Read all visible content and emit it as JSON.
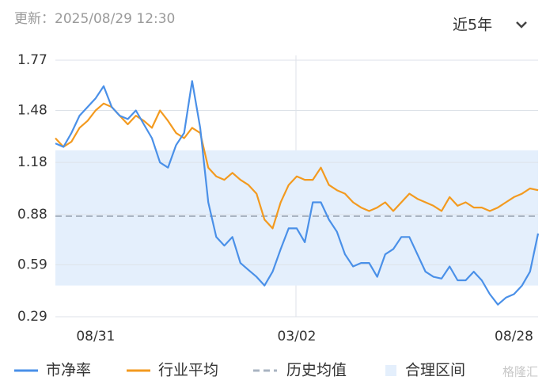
{
  "header": {
    "updated": "更新：2025/08/29 12:30",
    "range_selector": "近5年"
  },
  "watermark": "格隆汇",
  "chart_data": {
    "type": "line",
    "categories": [
      null,
      null,
      null,
      null,
      null,
      "08/31",
      null,
      null,
      null,
      null,
      null,
      null,
      null,
      null,
      null,
      null,
      null,
      null,
      null,
      null,
      null,
      null,
      null,
      null,
      null,
      null,
      null,
      null,
      null,
      null,
      "03/02",
      null,
      null,
      null,
      null,
      null,
      null,
      null,
      null,
      null,
      null,
      null,
      null,
      null,
      null,
      null,
      null,
      null,
      null,
      null,
      null,
      null,
      null,
      null,
      null,
      null,
      null,
      "08/28",
      null,
      null,
      null
    ],
    "series": [
      {
        "name": "市净率",
        "color": "#4a90e8",
        "values": [
          1.29,
          1.27,
          1.35,
          1.45,
          1.5,
          1.55,
          1.62,
          1.5,
          1.45,
          1.43,
          1.48,
          1.4,
          1.32,
          1.18,
          1.15,
          1.28,
          1.35,
          1.65,
          1.38,
          0.95,
          0.75,
          0.7,
          0.75,
          0.6,
          0.56,
          0.52,
          0.47,
          0.55,
          0.68,
          0.8,
          0.8,
          0.72,
          0.95,
          0.95,
          0.85,
          0.78,
          0.65,
          0.58,
          0.6,
          0.6,
          0.52,
          0.65,
          0.68,
          0.75,
          0.75,
          0.65,
          0.55,
          0.52,
          0.51,
          0.58,
          0.5,
          0.5,
          0.55,
          0.5,
          0.42,
          0.36,
          0.4,
          0.42,
          0.47,
          0.55,
          0.77
        ]
      },
      {
        "name": "行业平均",
        "color": "#f39a1f",
        "values": [
          1.32,
          1.27,
          1.3,
          1.38,
          1.42,
          1.48,
          1.52,
          1.5,
          1.45,
          1.4,
          1.45,
          1.42,
          1.38,
          1.48,
          1.42,
          1.35,
          1.32,
          1.38,
          1.35,
          1.15,
          1.1,
          1.08,
          1.12,
          1.08,
          1.05,
          1.0,
          0.85,
          0.8,
          0.95,
          1.05,
          1.1,
          1.08,
          1.08,
          1.15,
          1.05,
          1.02,
          1.0,
          0.95,
          0.92,
          0.9,
          0.92,
          0.95,
          0.9,
          0.95,
          1.0,
          0.97,
          0.95,
          0.93,
          0.9,
          0.98,
          0.93,
          0.95,
          0.92,
          0.92,
          0.9,
          0.92,
          0.95,
          0.98,
          1.0,
          1.03,
          1.02
        ]
      }
    ],
    "reference_line": {
      "name": "历史均值",
      "value": 0.87,
      "color": "#a9b4c2"
    },
    "band": {
      "name": "合理区间",
      "low": 0.47,
      "high": 1.25,
      "color": "#e4effc"
    },
    "ylim": [
      0.29,
      1.77
    ],
    "yticks": [
      0.29,
      0.59,
      0.88,
      1.18,
      1.48,
      1.77
    ],
    "grid": true
  }
}
